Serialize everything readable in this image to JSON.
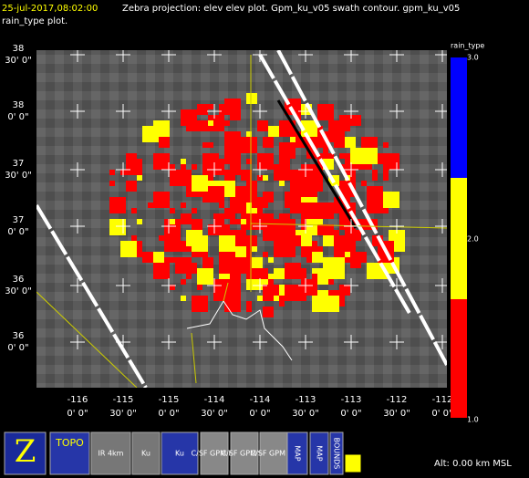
{
  "header": {
    "time": "25-jul-2017,08:02:00",
    "line1": "Zebra projection: elev elev  plot.  Gpm_ku_v05 swath contour.  gpm_ku_v05",
    "line2": "rain_type  plot."
  },
  "y_axis": {
    "labels": [
      [
        "38",
        "30' 0\""
      ],
      [
        "38",
        "0' 0\""
      ],
      [
        "37",
        "30' 0\""
      ],
      [
        "37",
        "0' 0\""
      ],
      [
        "36",
        "30' 0\""
      ],
      [
        "36",
        "0' 0\""
      ]
    ]
  },
  "x_axis": {
    "labels": [
      [
        "-116",
        "0' 0\""
      ],
      [
        "-115",
        "30' 0\""
      ],
      [
        "-115",
        "0' 0\""
      ],
      [
        "-114",
        "30' 0\""
      ],
      [
        "-114",
        "0' 0\""
      ],
      [
        "-113",
        "30' 0\""
      ],
      [
        "-113",
        "0' 0\""
      ],
      [
        "-112",
        "30' 0\""
      ],
      [
        "-112",
        "0' 0\""
      ]
    ]
  },
  "colorbar": {
    "title": "rain_type",
    "top": "3.0",
    "mid": "2.0",
    "bottom": "1.0"
  },
  "toolbar": {
    "buttons": [
      "Z",
      "TOPO",
      "IR 4km",
      "Ku",
      "Ku",
      "C/SF GPM Ku",
      "C/SF GPM Ku",
      "C/SF GPM Ku",
      "MAP",
      "MAP",
      "BOUNDS"
    ]
  },
  "status": "Alt: 0.00 km MSL"
}
